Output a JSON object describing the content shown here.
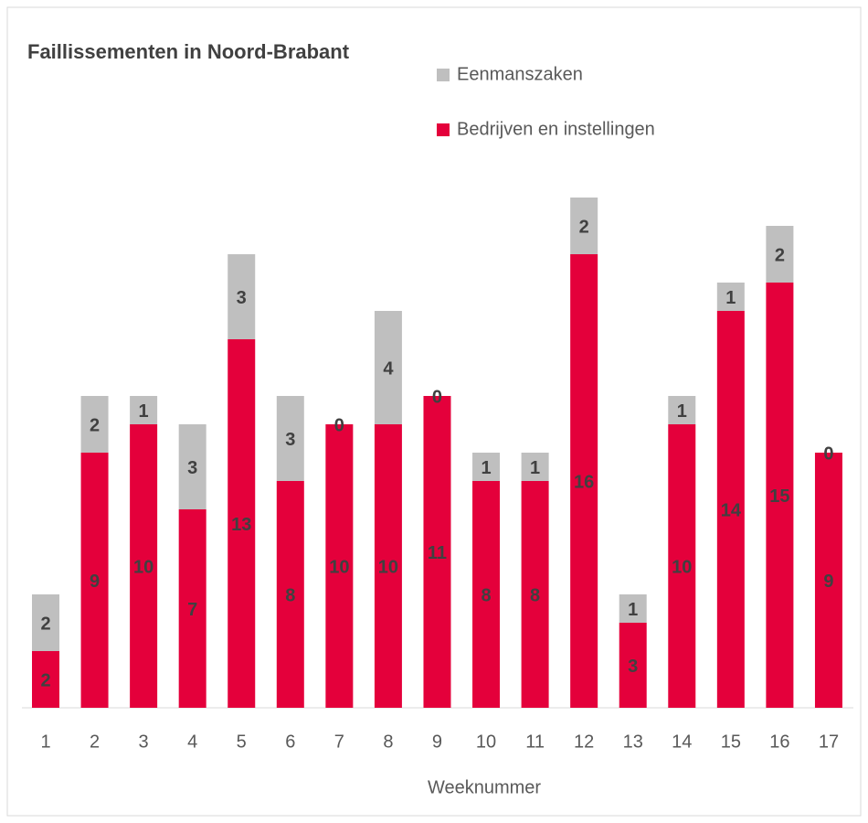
{
  "chart_data": {
    "type": "bar",
    "stacked": true,
    "title": "Faillissementen in Noord-Brabant",
    "xlabel": "Weeknummer",
    "categories": [
      "1",
      "2",
      "3",
      "4",
      "5",
      "6",
      "7",
      "8",
      "9",
      "10",
      "11",
      "12",
      "13",
      "14",
      "15",
      "16",
      "17"
    ],
    "series": [
      {
        "name": "Bedrijven en instellingen",
        "color": "#e4003b",
        "values": [
          2,
          9,
          10,
          7,
          13,
          8,
          10,
          10,
          11,
          8,
          8,
          16,
          3,
          10,
          14,
          15,
          9
        ]
      },
      {
        "name": "Eenmanszaken",
        "color": "#bfbfbf",
        "values": [
          2,
          2,
          1,
          3,
          3,
          3,
          0,
          4,
          0,
          1,
          1,
          2,
          1,
          1,
          1,
          2,
          0
        ]
      }
    ]
  }
}
